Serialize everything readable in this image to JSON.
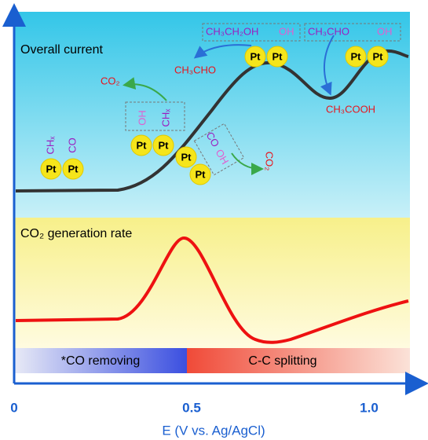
{
  "figure": {
    "panels": {
      "top": "Overall current",
      "bottom": "CO₂ generation rate"
    },
    "regions": [
      "*CO removing",
      "C-C splitting"
    ],
    "x_axis": {
      "title": "E (V vs. Ag/AgCl)",
      "ticks": [
        "0",
        "0.5",
        "1.0"
      ]
    },
    "species": {
      "pt": "Pt",
      "chx": "CHₓ",
      "co": "CO",
      "oh": "OH",
      "co2": "CO₂",
      "ethanol": "CH₃CH₂OH",
      "acetaldehyde": "CH₃CHO",
      "acetic_acid": "CH₃COOH"
    }
  }
}
